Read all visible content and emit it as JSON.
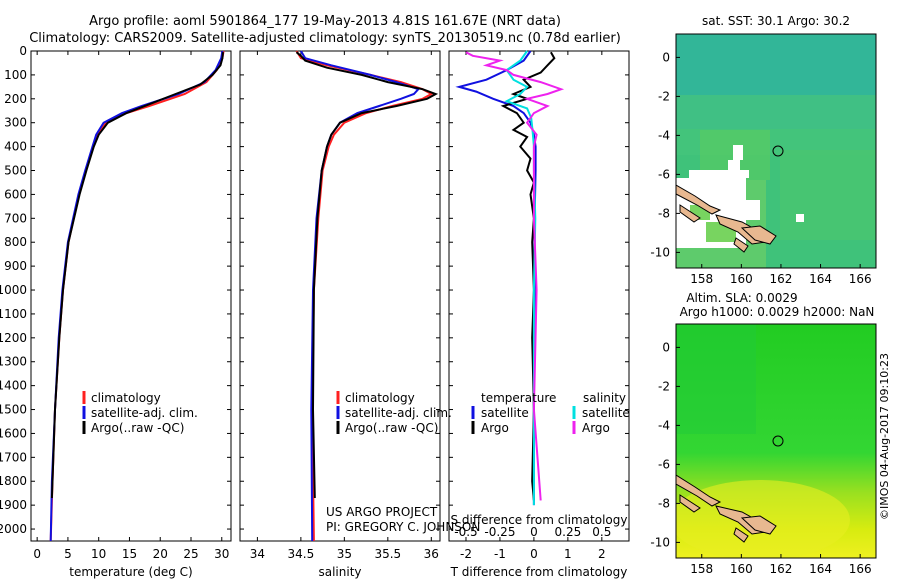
{
  "title_line1": "Argo profile: aoml 5901864_177 19-May-2013 4.81S 161.67E (NRT data)",
  "title_line2": "Climatology: CARS2009. Satellite-adjusted climatology: synTS_20130519.nc (0.78d earlier)",
  "stamp": "©IMOS 04-Aug-2017 09:10:23",
  "colors": {
    "climatology": "#ff2020",
    "satellite": "#1010e0",
    "argo": "#000000",
    "sat_salinity": "#00e0e0",
    "argo_salinity": "#ee22ee"
  },
  "credit": {
    "line1": "US ARGO PROJECT",
    "line2": "PI: GREGORY C. JOHNSON"
  },
  "legend": {
    "climatology": "climatology",
    "satellite_adj": "satellite-adj. clim.",
    "argo_raw": "Argo(..raw -QC)",
    "temperature": "temperature",
    "salinity": "salinity",
    "satellite": "satellite",
    "argo": "Argo"
  },
  "chart_data": [
    {
      "type": "line",
      "id": "temperature",
      "xlabel": "temperature (deg C)",
      "ylabel": "",
      "xlim": [
        -1,
        31.5
      ],
      "ylim": [
        2050,
        0
      ],
      "xticks": [
        0,
        5,
        10,
        15,
        20,
        25,
        30
      ],
      "yticks": [
        0,
        100,
        200,
        300,
        400,
        500,
        600,
        700,
        800,
        900,
        1000,
        1100,
        1200,
        1300,
        1400,
        1500,
        1600,
        1700,
        1800,
        1900,
        2000
      ],
      "series": [
        {
          "name": "climatology",
          "color_key": "climatology",
          "depth": [
            0,
            30,
            80,
            130,
            180,
            230,
            260,
            300,
            350,
            400,
            500,
            600,
            800,
            1000,
            1200,
            1500,
            1800,
            2050
          ],
          "values": [
            30.3,
            30.1,
            29.2,
            27.5,
            24,
            18.2,
            14.5,
            11.2,
            9.8,
            9.1,
            7.9,
            6.8,
            5.1,
            4.2,
            3.6,
            2.9,
            2.5,
            2.2
          ]
        },
        {
          "name": "satellite",
          "color_key": "satellite",
          "depth": [
            0,
            30,
            80,
            130,
            180,
            230,
            260,
            300,
            350,
            400,
            500,
            600,
            800,
            1000,
            1200,
            1500,
            1800,
            2050
          ],
          "values": [
            30.1,
            29.9,
            29.0,
            27.2,
            23,
            17,
            13.8,
            10.8,
            9.6,
            9.0,
            7.8,
            6.7,
            5.0,
            4.1,
            3.5,
            2.9,
            2.4,
            2.2
          ]
        },
        {
          "name": "argo",
          "color_key": "argo",
          "depth": [
            5,
            30,
            60,
            100,
            140,
            180,
            220,
            260,
            300,
            350,
            400,
            500,
            600,
            800,
            1000,
            1200,
            1500,
            1800,
            1870
          ],
          "values": [
            30.2,
            30.1,
            29.8,
            28.5,
            26.5,
            22.5,
            18.5,
            14.5,
            11.5,
            10.0,
            9.2,
            8.0,
            6.9,
            5.1,
            4.2,
            3.6,
            2.9,
            2.5,
            2.4
          ]
        }
      ]
    },
    {
      "type": "line",
      "id": "salinity",
      "xlabel": "salinity",
      "ylabel": "",
      "xlim": [
        33.8,
        36.1
      ],
      "ylim": [
        2050,
        0
      ],
      "xticks": [
        34,
        34.5,
        35,
        35.5,
        36
      ],
      "series": [
        {
          "name": "climatology",
          "color_key": "climatology",
          "depth": [
            0,
            30,
            60,
            100,
            130,
            160,
            180,
            200,
            230,
            260,
            300,
            350,
            400,
            500,
            700,
            1000,
            1500,
            2050
          ],
          "values": [
            34.45,
            34.5,
            34.8,
            35.3,
            35.65,
            35.9,
            36.0,
            35.9,
            35.55,
            35.25,
            35.0,
            34.88,
            34.82,
            34.75,
            34.7,
            34.65,
            34.63,
            34.65
          ]
        },
        {
          "name": "satellite",
          "color_key": "satellite",
          "depth": [
            0,
            30,
            60,
            100,
            130,
            160,
            180,
            200,
            230,
            260,
            300,
            350,
            400,
            500,
            700,
            1000,
            1500,
            2050
          ],
          "values": [
            34.5,
            34.55,
            34.85,
            35.3,
            35.6,
            35.85,
            35.8,
            35.65,
            35.4,
            35.15,
            34.95,
            34.85,
            34.8,
            34.74,
            34.68,
            34.64,
            34.62,
            34.63
          ]
        },
        {
          "name": "argo",
          "color_key": "argo",
          "depth": [
            5,
            20,
            40,
            70,
            100,
            130,
            160,
            180,
            200,
            230,
            260,
            300,
            350,
            400,
            500,
            700,
            1000,
            1500,
            1870
          ],
          "values": [
            34.45,
            34.5,
            34.55,
            34.8,
            35.2,
            35.5,
            35.9,
            36.05,
            35.95,
            35.6,
            35.2,
            34.95,
            34.85,
            34.8,
            34.74,
            34.69,
            34.65,
            34.64,
            34.66
          ]
        }
      ]
    },
    {
      "type": "line",
      "id": "differences",
      "xlabel": "T difference from climatology",
      "xlabel2": "S difference from climatology",
      "xlim": [
        -2.5,
        2.8
      ],
      "ylim": [
        2050,
        0
      ],
      "xticks": [
        -2,
        -1,
        0,
        1,
        2
      ],
      "sticks": [
        -0.5,
        -0.25,
        0,
        0.25,
        0.5
      ],
      "series": [
        {
          "name": "T satellite",
          "color_key": "satellite",
          "depth": [
            0,
            40,
            80,
            120,
            150,
            170,
            200,
            230,
            260,
            300,
            350,
            400,
            500,
            700,
            1000,
            1500,
            1900
          ],
          "values": [
            -0.1,
            -0.3,
            -0.8,
            -1.4,
            -2.2,
            -1.7,
            -1.2,
            -0.6,
            -0.3,
            -0.1,
            0,
            0.05,
            0.05,
            0.02,
            0.02,
            0.0,
            0.0
          ]
        },
        {
          "name": "T argo",
          "color_key": "argo",
          "depth": [
            5,
            30,
            60,
            90,
            120,
            150,
            180,
            200,
            230,
            260,
            300,
            330,
            360,
            400,
            450,
            500,
            550,
            600,
            700,
            800,
            1000,
            1200,
            1500,
            1800,
            1880
          ],
          "values": [
            0.5,
            0.6,
            0.4,
            0.2,
            -0.3,
            -0.1,
            -0.6,
            -0.2,
            -0.9,
            -0.5,
            -0.3,
            -0.6,
            -0.2,
            -0.4,
            -0.1,
            -0.2,
            0.0,
            -0.1,
            0.0,
            -0.05,
            0.0,
            -0.05,
            0.0,
            -0.05,
            0.0
          ]
        },
        {
          "name": "S satellite",
          "color_key": "sat_salinity",
          "depth": [
            0,
            40,
            80,
            120,
            150,
            180,
            210,
            240,
            280,
            330,
            400,
            500,
            700,
            1000,
            1500,
            1900
          ],
          "values": [
            -0.05,
            -0.1,
            -0.2,
            -0.15,
            -0.05,
            -0.1,
            -0.2,
            -0.05,
            -0.02,
            -0.01,
            0,
            0,
            0.01,
            0,
            0,
            0
          ]
        },
        {
          "name": "S argo",
          "color_key": "argo_salinity",
          "depth": [
            5,
            20,
            40,
            60,
            80,
            100,
            130,
            160,
            180,
            200,
            230,
            260,
            300,
            350,
            400,
            500,
            700,
            1000,
            1500,
            1880
          ],
          "values": [
            -0.5,
            -0.45,
            -0.25,
            -0.35,
            -0.2,
            -0.15,
            0.05,
            0.2,
            0.1,
            -0.05,
            0.1,
            0.0,
            -0.05,
            0.02,
            0.0,
            0.0,
            0.0,
            0.02,
            0.0,
            0.05
          ]
        }
      ]
    },
    {
      "type": "heatmap",
      "id": "sst_map",
      "title": "sat. SST: 30.1  Argo: 30.2",
      "xticks": [
        "158",
        "160",
        "162",
        "164",
        "166"
      ],
      "yticks": [
        "0",
        "-2",
        "-4",
        "-6",
        "-8",
        "-10"
      ],
      "xlim": [
        156.7,
        166.8
      ],
      "ylim": [
        -10.8,
        1.2
      ]
    },
    {
      "type": "heatmap",
      "id": "sla_map",
      "title_line1": "Altim. SLA: 0.0029",
      "title_line2": "Argo h1000: 0.0029 h2000: NaN",
      "xticks": [
        "158",
        "160",
        "162",
        "164",
        "166"
      ],
      "yticks": [
        "0",
        "-2",
        "-4",
        "-6",
        "-8",
        "-10"
      ],
      "xlim": [
        156.7,
        166.8
      ],
      "ylim": [
        -10.8,
        1.2
      ]
    }
  ]
}
